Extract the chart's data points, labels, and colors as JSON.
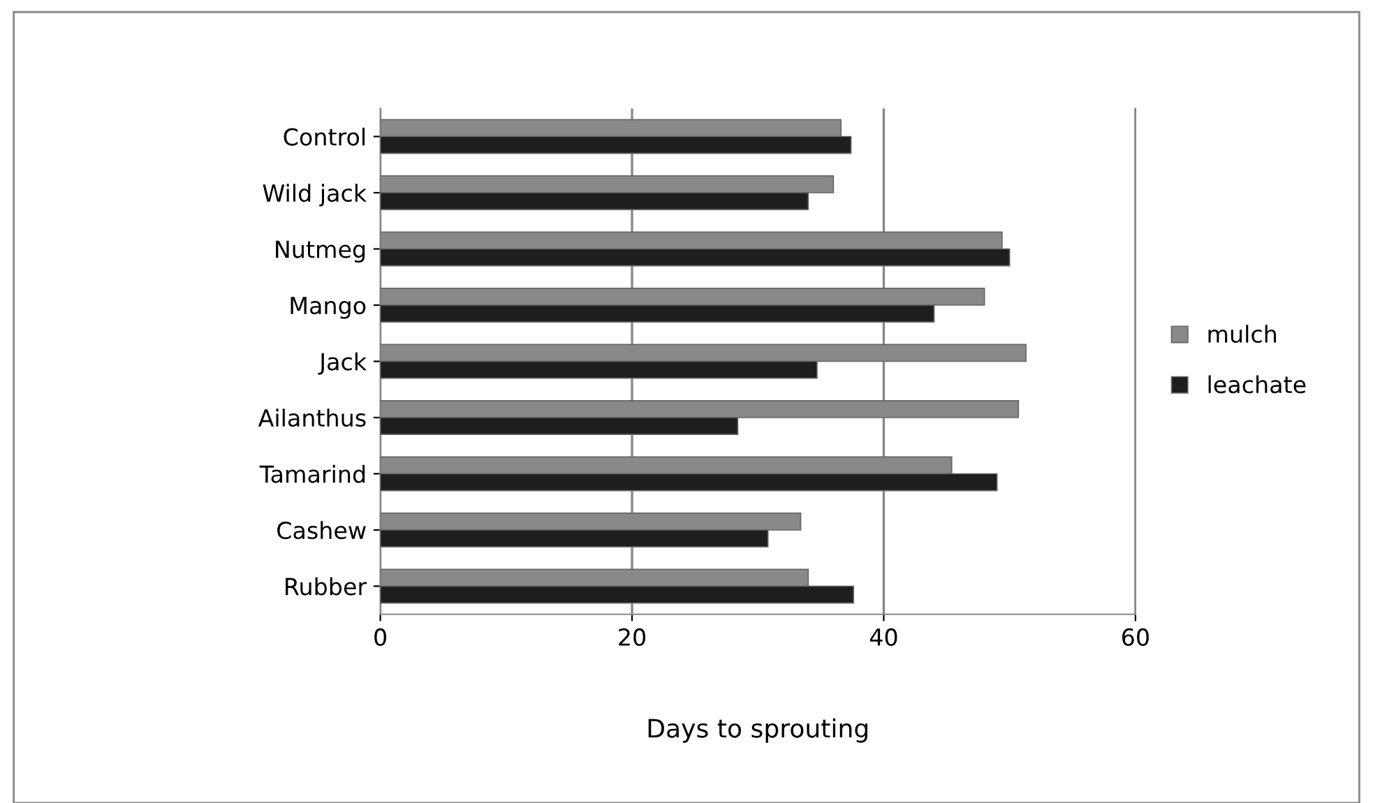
{
  "chart_data": {
    "type": "bar",
    "orientation": "horizontal",
    "xlabel": "Days to sprouting",
    "categories": [
      "Control",
      "Wild jack",
      "Nutmeg",
      "Mango",
      "Jack",
      "Ailanthus",
      "Tamarind",
      "Cashew",
      "Rubber"
    ],
    "series": [
      {
        "name": "mulch",
        "color": "#898989",
        "values": [
          36.6,
          36,
          49.4,
          48,
          51.3,
          50.7,
          45.4,
          33.4,
          34
        ]
      },
      {
        "name": "leachate",
        "color": "#1e1e1e",
        "values": [
          37.4,
          34,
          50,
          44,
          34.7,
          28.4,
          49,
          30.8,
          37.6
        ]
      }
    ],
    "xlim": [
      0,
      60
    ],
    "xticks": [
      0,
      20,
      40,
      60
    ],
    "grid": "x",
    "legend": "right"
  }
}
